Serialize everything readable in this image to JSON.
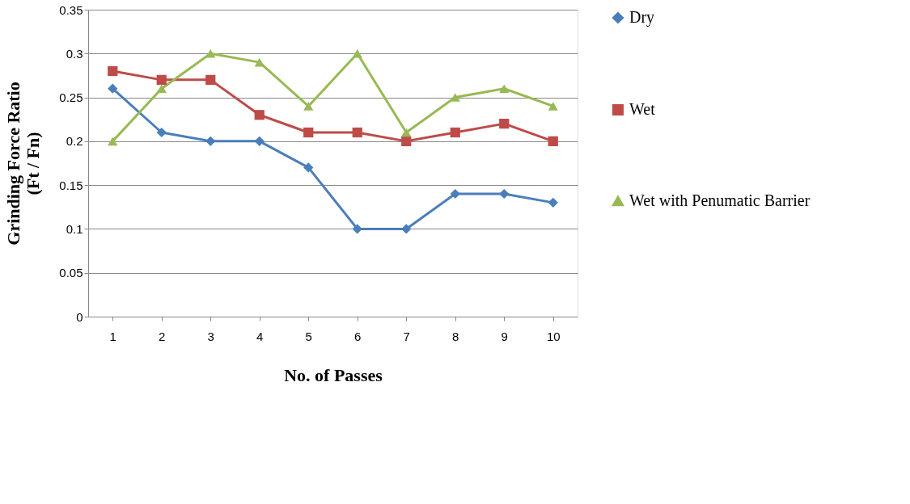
{
  "chart_data": {
    "type": "line",
    "xlabel": "No. of Passes",
    "ylabel": "Grinding Force Ratio (Ft / Fn)",
    "categories": [
      "1",
      "2",
      "3",
      "4",
      "5",
      "6",
      "7",
      "8",
      "9",
      "10"
    ],
    "series": [
      {
        "name": "Dry",
        "color": "#4a7ebb",
        "marker": "diamond",
        "values": [
          0.26,
          0.21,
          0.2,
          0.2,
          0.17,
          0.1,
          0.1,
          0.14,
          0.14,
          0.13
        ]
      },
      {
        "name": "Wet",
        "color": "#be4b48",
        "marker": "square",
        "values": [
          0.28,
          0.27,
          0.27,
          0.23,
          0.21,
          0.21,
          0.2,
          0.21,
          0.22,
          0.2
        ]
      },
      {
        "name": "Wet with Penumatic Barrier",
        "color": "#98b954",
        "marker": "triangle",
        "values": [
          0.2,
          0.26,
          0.3,
          0.29,
          0.24,
          0.3,
          0.21,
          0.25,
          0.26,
          0.24
        ]
      }
    ],
    "ylim": [
      0,
      0.35
    ],
    "yticks": [
      0,
      0.05,
      0.1,
      0.15,
      0.2,
      0.25,
      0.3,
      0.35
    ],
    "grid": "y",
    "legend": "right",
    "line_style": "solid"
  }
}
